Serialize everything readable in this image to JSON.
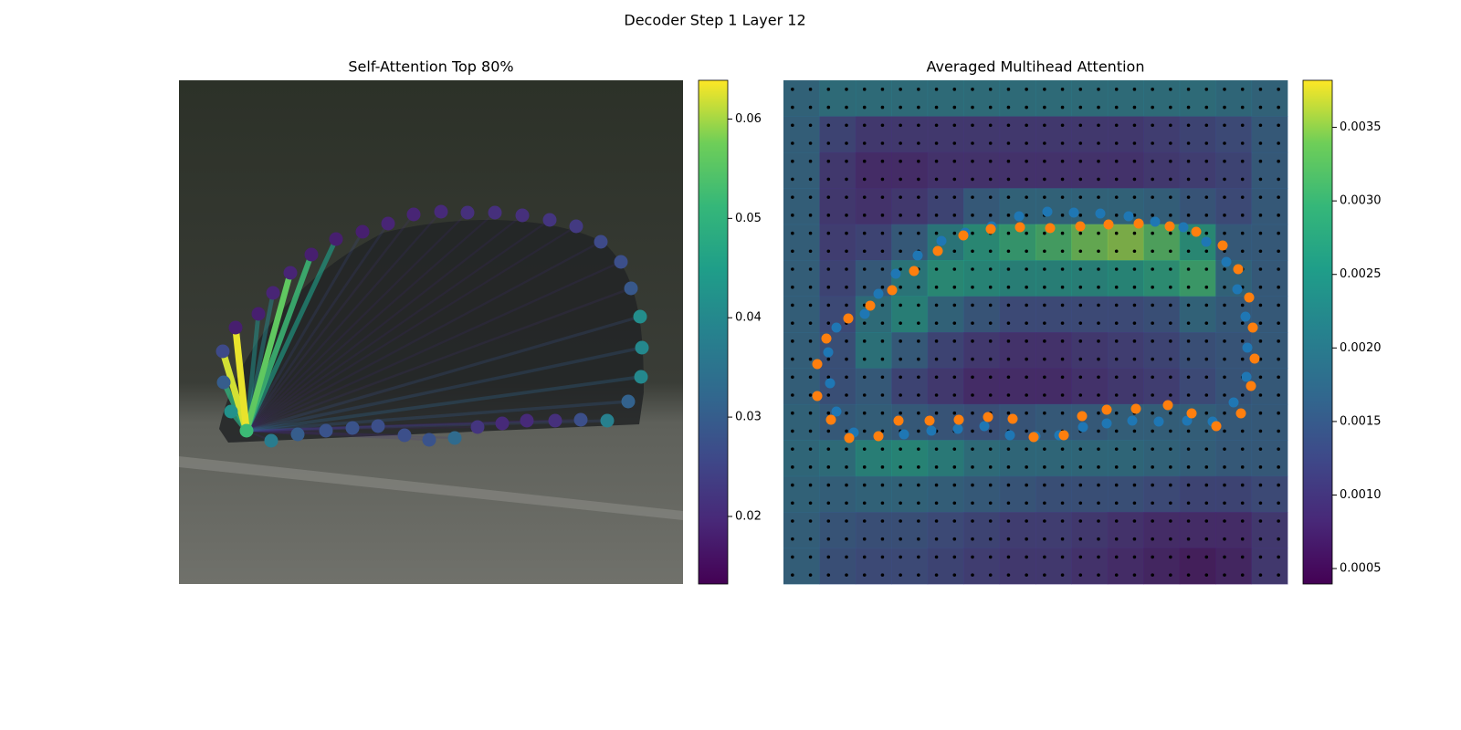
{
  "title": "Decoder Step 1 Layer 12",
  "chart_data": [
    {
      "type": "attention",
      "title": "Self-Attention Top 80%",
      "x": [
        74,
        101,
        130,
        161,
        190,
        218,
        247,
        274,
        302,
        327,
        354,
        381,
        412,
        440,
        469,
        492,
        506,
        507,
        505,
        495,
        484,
        462,
        435,
        406,
        376,
        346,
        316,
        287,
        257,
        229,
        201,
        172,
        145,
        122,
        103,
        87,
        62,
        48,
        49,
        57
      ],
      "y": [
        384,
        395,
        388,
        384,
        381,
        379,
        389,
        394,
        392,
        380,
        376,
        373,
        373,
        372,
        373,
        352,
        325,
        293,
        259,
        228,
        199,
        177,
        160,
        153,
        148,
        145,
        145,
        144,
        147,
        157,
        166,
        174,
        191,
        211,
        233,
        256,
        271,
        297,
        331,
        363
      ],
      "values": [
        0.052,
        0.037,
        0.03,
        0.028,
        0.028,
        0.027,
        0.027,
        0.028,
        0.033,
        0.022,
        0.02,
        0.02,
        0.021,
        0.027,
        0.038,
        0.031,
        0.04,
        0.04,
        0.041,
        0.029,
        0.027,
        0.026,
        0.023,
        0.022,
        0.021,
        0.021,
        0.021,
        0.02,
        0.019,
        0.019,
        0.018,
        0.018,
        0.018,
        0.019,
        0.019,
        0.018,
        0.018,
        0.026,
        0.03,
        0.042
      ],
      "attention": [
        null,
        0.021,
        0.02,
        0.02,
        0.02,
        0.02,
        0.02,
        0.02,
        0.02,
        0.018,
        0.018,
        0.018,
        0.018,
        0.022,
        0.028,
        0.03,
        0.032,
        0.03,
        0.028,
        0.022,
        0.021,
        0.021,
        0.02,
        0.02,
        0.02,
        0.02,
        0.02,
        0.021,
        0.022,
        0.024,
        0.026,
        0.045,
        0.052,
        0.056,
        0.04,
        0.042,
        0.063,
        0.062,
        0.05,
        0.048
      ],
      "colorbar": {
        "lim": [
          0.0132,
          0.0639
        ],
        "ticks": [
          0.02,
          0.03,
          0.04,
          0.05,
          0.06
        ]
      }
    },
    {
      "type": "heatmap",
      "title": "Averaged Multihead Attention",
      "z": [
        [
          0.0018,
          0.002,
          0.002,
          0.002,
          0.002,
          0.002,
          0.002,
          0.002,
          0.002,
          0.002,
          0.002,
          0.002,
          0.0019,
          0.0018
        ],
        [
          0.0017,
          0.0012,
          0.001,
          0.001,
          0.001,
          0.001,
          0.001,
          0.001,
          0.001,
          0.001,
          0.0011,
          0.0012,
          0.0013,
          0.0016
        ],
        [
          0.0017,
          0.001,
          0.0008,
          0.0008,
          0.0009,
          0.0009,
          0.0009,
          0.0009,
          0.0009,
          0.0009,
          0.001,
          0.0011,
          0.0012,
          0.0016
        ],
        [
          0.0017,
          0.001,
          0.0009,
          0.001,
          0.0012,
          0.0016,
          0.0018,
          0.0018,
          0.0018,
          0.0018,
          0.0017,
          0.0015,
          0.0013,
          0.0016
        ],
        [
          0.0017,
          0.0011,
          0.0012,
          0.0016,
          0.0022,
          0.0026,
          0.0029,
          0.0031,
          0.0034,
          0.0035,
          0.0032,
          0.0026,
          0.0016,
          0.0016
        ],
        [
          0.0017,
          0.0012,
          0.0016,
          0.0022,
          0.0026,
          0.0025,
          0.0024,
          0.0024,
          0.0024,
          0.0025,
          0.0027,
          0.003,
          0.0018,
          0.0016
        ],
        [
          0.0017,
          0.0013,
          0.002,
          0.0024,
          0.0018,
          0.0015,
          0.0013,
          0.0013,
          0.0013,
          0.0013,
          0.0014,
          0.0018,
          0.0016,
          0.0016
        ],
        [
          0.0017,
          0.0014,
          0.0021,
          0.0016,
          0.0012,
          0.001,
          0.0009,
          0.0009,
          0.001,
          0.0011,
          0.0012,
          0.0014,
          0.0015,
          0.0016
        ],
        [
          0.0017,
          0.0014,
          0.0016,
          0.0012,
          0.001,
          0.0008,
          0.0008,
          0.0008,
          0.0009,
          0.001,
          0.0011,
          0.0013,
          0.0015,
          0.0016
        ],
        [
          0.0018,
          0.0016,
          0.0017,
          0.0016,
          0.0015,
          0.0014,
          0.0015,
          0.0016,
          0.0016,
          0.0017,
          0.0017,
          0.0017,
          0.0016,
          0.0016
        ],
        [
          0.0019,
          0.002,
          0.0024,
          0.0025,
          0.0023,
          0.002,
          0.0019,
          0.0019,
          0.0019,
          0.0019,
          0.0018,
          0.0017,
          0.0016,
          0.0016
        ],
        [
          0.0018,
          0.0017,
          0.0018,
          0.0018,
          0.0017,
          0.0016,
          0.0015,
          0.0014,
          0.0014,
          0.0014,
          0.0013,
          0.0012,
          0.0012,
          0.0013
        ],
        [
          0.0017,
          0.0015,
          0.0014,
          0.0014,
          0.0013,
          0.0012,
          0.0011,
          0.0011,
          0.001,
          0.0009,
          0.0008,
          0.0008,
          0.0008,
          0.001
        ],
        [
          0.0017,
          0.0014,
          0.0013,
          0.0013,
          0.0012,
          0.0011,
          0.001,
          0.001,
          0.0009,
          0.0008,
          0.0007,
          0.0006,
          0.0007,
          0.001
        ]
      ],
      "series": [
        {
          "color": "#1f77b4",
          "x": [
            49,
            58,
            89,
            104,
            123,
            147,
            173,
            199,
            228,
            258,
            289,
            318,
            347,
            378,
            407,
            438,
            463,
            485,
            497,
            506,
            508,
            507,
            493,
            470,
            442,
            411,
            382,
            354,
            328,
            302,
            276,
            248,
            220,
            191,
            162,
            132,
            77,
            58,
            51
          ],
          "y": [
            298,
            271,
            256,
            234,
            212,
            192,
            176,
            167,
            160,
            149,
            144,
            145,
            146,
            149,
            155,
            161,
            177,
            199,
            229,
            259,
            293,
            325,
            353,
            374,
            373,
            374,
            373,
            376,
            380,
            389,
            390,
            389,
            379,
            382,
            384,
            388,
            386,
            363,
            332
          ]
        },
        {
          "color": "#ff7f0e",
          "x": [
            37,
            47,
            71,
            95,
            119,
            143,
            169,
            197,
            227,
            259,
            292,
            325,
            356,
            389,
            423,
            452,
            481,
            498,
            510,
            514,
            516,
            512,
            501,
            474,
            447,
            421,
            386,
            354,
            327,
            307,
            274,
            251,
            224,
            192,
            160,
            126,
            104,
            72,
            52,
            37
          ],
          "y": [
            311,
            283,
            261,
            247,
            230,
            209,
            187,
            170,
            163,
            161,
            162,
            160,
            158,
            157,
            160,
            166,
            181,
            207,
            238,
            271,
            305,
            335,
            365,
            379,
            365,
            356,
            360,
            361,
            368,
            389,
            391,
            371,
            369,
            372,
            373,
            373,
            390,
            392,
            372,
            346
          ]
        }
      ],
      "colorbar": {
        "lim": [
          0.000395,
          0.00382
        ],
        "ticks": [
          0.0005,
          {
            "value": 0.001,
            "label": "0.0010"
          },
          0.0015,
          {
            "value": 0.002,
            "label": "0.0020"
          },
          0.0025,
          {
            "value": 0.003,
            "label": "0.0030"
          },
          0.0035
        ]
      }
    }
  ]
}
